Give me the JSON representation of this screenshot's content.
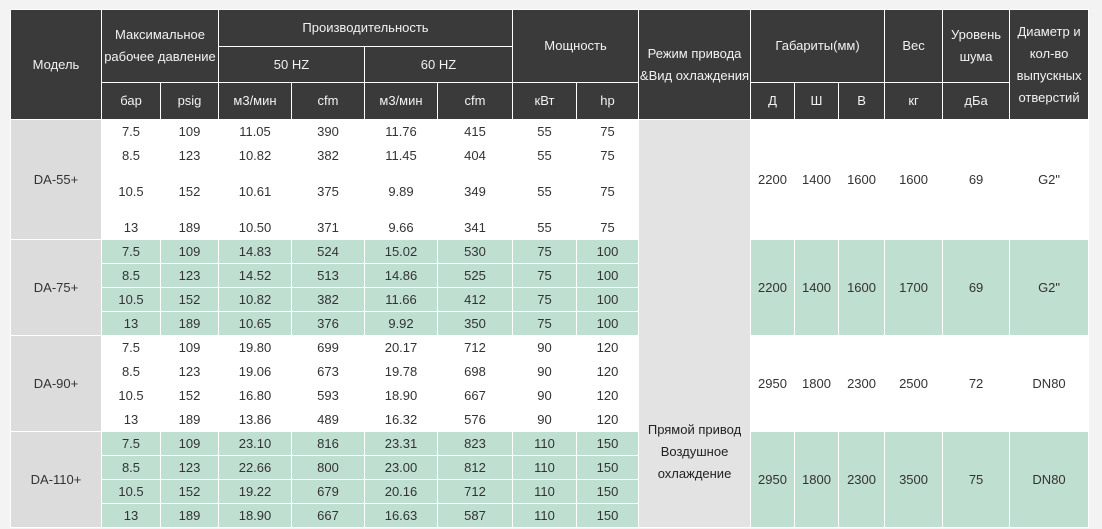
{
  "headers": {
    "model": "Модель",
    "max_pressure": "Максимальное рабочее давление",
    "capacity": "Производительность",
    "hz50": "50 HZ",
    "hz60": "60 HZ",
    "power": "Мощность",
    "drive_mode": "Режим привода &Вид охлаждения",
    "dimensions": "Габариты(мм)",
    "weight": "Вес",
    "noise": "Уровень шума",
    "outlet": "Диаметр и кол-во выпускных отверстий",
    "units": {
      "bar": "бар",
      "psig": "psig",
      "m3_50": "м3/мин",
      "cfm_50": "cfm",
      "m3_60": "м3/мин",
      "cfm_60": "cfm",
      "kw": "кВт",
      "hp": "hp",
      "d": "Д",
      "w": "Ш",
      "h": "В",
      "kg": "кг",
      "dba": "дБа"
    }
  },
  "drive_text": {
    "line1": "Прямой привод",
    "line2": "Воздушное",
    "line3": "охлаждение"
  },
  "models": [
    {
      "name": "DA-55+",
      "spec": {
        "d": "2200",
        "w": "1400",
        "h": "1600",
        "weight": "1600",
        "noise": "69",
        "outlet": "G2\""
      },
      "rows": [
        {
          "bar": "7.5",
          "psig": "109",
          "m3_50": "11.05",
          "cfm_50": "390",
          "m3_60": "11.76",
          "cfm_60": "415",
          "kw": "55",
          "hp": "75"
        },
        {
          "bar": "8.5",
          "psig": "123",
          "m3_50": "10.82",
          "cfm_50": "382",
          "m3_60": "11.45",
          "cfm_60": "404",
          "kw": "55",
          "hp": "75"
        },
        {
          "bar": "10.5",
          "psig": "152",
          "m3_50": "10.61",
          "cfm_50": "375",
          "m3_60": "9.89",
          "cfm_60": "349",
          "kw": "55",
          "hp": "75"
        },
        {
          "bar": "13",
          "psig": "189",
          "m3_50": "10.50",
          "cfm_50": "371",
          "m3_60": "9.66",
          "cfm_60": "341",
          "kw": "55",
          "hp": "75"
        }
      ]
    },
    {
      "name": "DA-75+",
      "spec": {
        "d": "2200",
        "w": "1400",
        "h": "1600",
        "weight": "1700",
        "noise": "69",
        "outlet": "G2\""
      },
      "rows": [
        {
          "bar": "7.5",
          "psig": "109",
          "m3_50": "14.83",
          "cfm_50": "524",
          "m3_60": "15.02",
          "cfm_60": "530",
          "kw": "75",
          "hp": "100"
        },
        {
          "bar": "8.5",
          "psig": "123",
          "m3_50": "14.52",
          "cfm_50": "513",
          "m3_60": "14.86",
          "cfm_60": "525",
          "kw": "75",
          "hp": "100"
        },
        {
          "bar": "10.5",
          "psig": "152",
          "m3_50": "10.82",
          "cfm_50": "382",
          "m3_60": "11.66",
          "cfm_60": "412",
          "kw": "75",
          "hp": "100"
        },
        {
          "bar": "13",
          "psig": "189",
          "m3_50": "10.65",
          "cfm_50": "376",
          "m3_60": "9.92",
          "cfm_60": "350",
          "kw": "75",
          "hp": "100"
        }
      ]
    },
    {
      "name": "DA-90+",
      "spec": {
        "d": "2950",
        "w": "1800",
        "h": "2300",
        "weight": "2500",
        "noise": "72",
        "outlet": "DN80"
      },
      "rows": [
        {
          "bar": "7.5",
          "psig": "109",
          "m3_50": "19.80",
          "cfm_50": "699",
          "m3_60": "20.17",
          "cfm_60": "712",
          "kw": "90",
          "hp": "120"
        },
        {
          "bar": "8.5",
          "psig": "123",
          "m3_50": "19.06",
          "cfm_50": "673",
          "m3_60": "19.78",
          "cfm_60": "698",
          "kw": "90",
          "hp": "120"
        },
        {
          "bar": "10.5",
          "psig": "152",
          "m3_50": "16.80",
          "cfm_50": "593",
          "m3_60": "18.90",
          "cfm_60": "667",
          "kw": "90",
          "hp": "120"
        },
        {
          "bar": "13",
          "psig": "189",
          "m3_50": "13.86",
          "cfm_50": "489",
          "m3_60": "16.32",
          "cfm_60": "576",
          "kw": "90",
          "hp": "120"
        }
      ]
    },
    {
      "name": "DA-110+",
      "spec": {
        "d": "2950",
        "w": "1800",
        "h": "2300",
        "weight": "3500",
        "noise": "75",
        "outlet": "DN80"
      },
      "rows": [
        {
          "bar": "7.5",
          "psig": "109",
          "m3_50": "23.10",
          "cfm_50": "816",
          "m3_60": "23.31",
          "cfm_60": "823",
          "kw": "110",
          "hp": "150"
        },
        {
          "bar": "8.5",
          "psig": "123",
          "m3_50": "22.66",
          "cfm_50": "800",
          "m3_60": "23.00",
          "cfm_60": "812",
          "kw": "110",
          "hp": "150"
        },
        {
          "bar": "10.5",
          "psig": "152",
          "m3_50": "19.22",
          "cfm_50": "679",
          "m3_60": "20.16",
          "cfm_60": "712",
          "kw": "110",
          "hp": "150"
        },
        {
          "bar": "13",
          "psig": "189",
          "m3_50": "18.90",
          "cfm_50": "667",
          "m3_60": "16.63",
          "cfm_60": "587",
          "kw": "110",
          "hp": "150"
        }
      ]
    }
  ],
  "colors": {
    "header_bg": "#3a3a3a",
    "header_text": "#f2f2f2",
    "model_bg": "#dcdcdc",
    "green_row": "#bfdfd0",
    "white_row": "#ffffff"
  }
}
